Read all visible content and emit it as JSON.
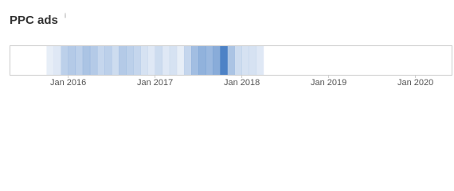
{
  "chart_data": {
    "type": "strip",
    "title": "PPC ads",
    "title_note": "i",
    "x": [
      "2015-10",
      "2015-11",
      "2015-12",
      "2016-01",
      "2016-02",
      "2016-03",
      "2016-04",
      "2016-05",
      "2016-06",
      "2016-07",
      "2016-08",
      "2016-09",
      "2016-10",
      "2016-11",
      "2016-12",
      "2017-01",
      "2017-02",
      "2017-03",
      "2017-04",
      "2017-05",
      "2017-06",
      "2017-07",
      "2017-08",
      "2017-09",
      "2017-10",
      "2017-11",
      "2017-12",
      "2018-01",
      "2018-02",
      "2018-03"
    ],
    "values": [
      5,
      10,
      30,
      35,
      30,
      40,
      35,
      25,
      30,
      20,
      35,
      30,
      25,
      15,
      10,
      20,
      10,
      15,
      5,
      25,
      45,
      55,
      50,
      60,
      95,
      40,
      20,
      15,
      15,
      10
    ],
    "color": "#3f78c2",
    "xlim": [
      "2015-05",
      "2020-06"
    ],
    "xticks": [
      {
        "value": "2016-01",
        "label": "Jan 2016"
      },
      {
        "value": "2017-01",
        "label": "Jan 2017"
      },
      {
        "value": "2018-01",
        "label": "Jan 2018"
      },
      {
        "value": "2019-01",
        "label": "Jan 2019"
      },
      {
        "value": "2020-01",
        "label": "Jan 2020"
      }
    ]
  }
}
